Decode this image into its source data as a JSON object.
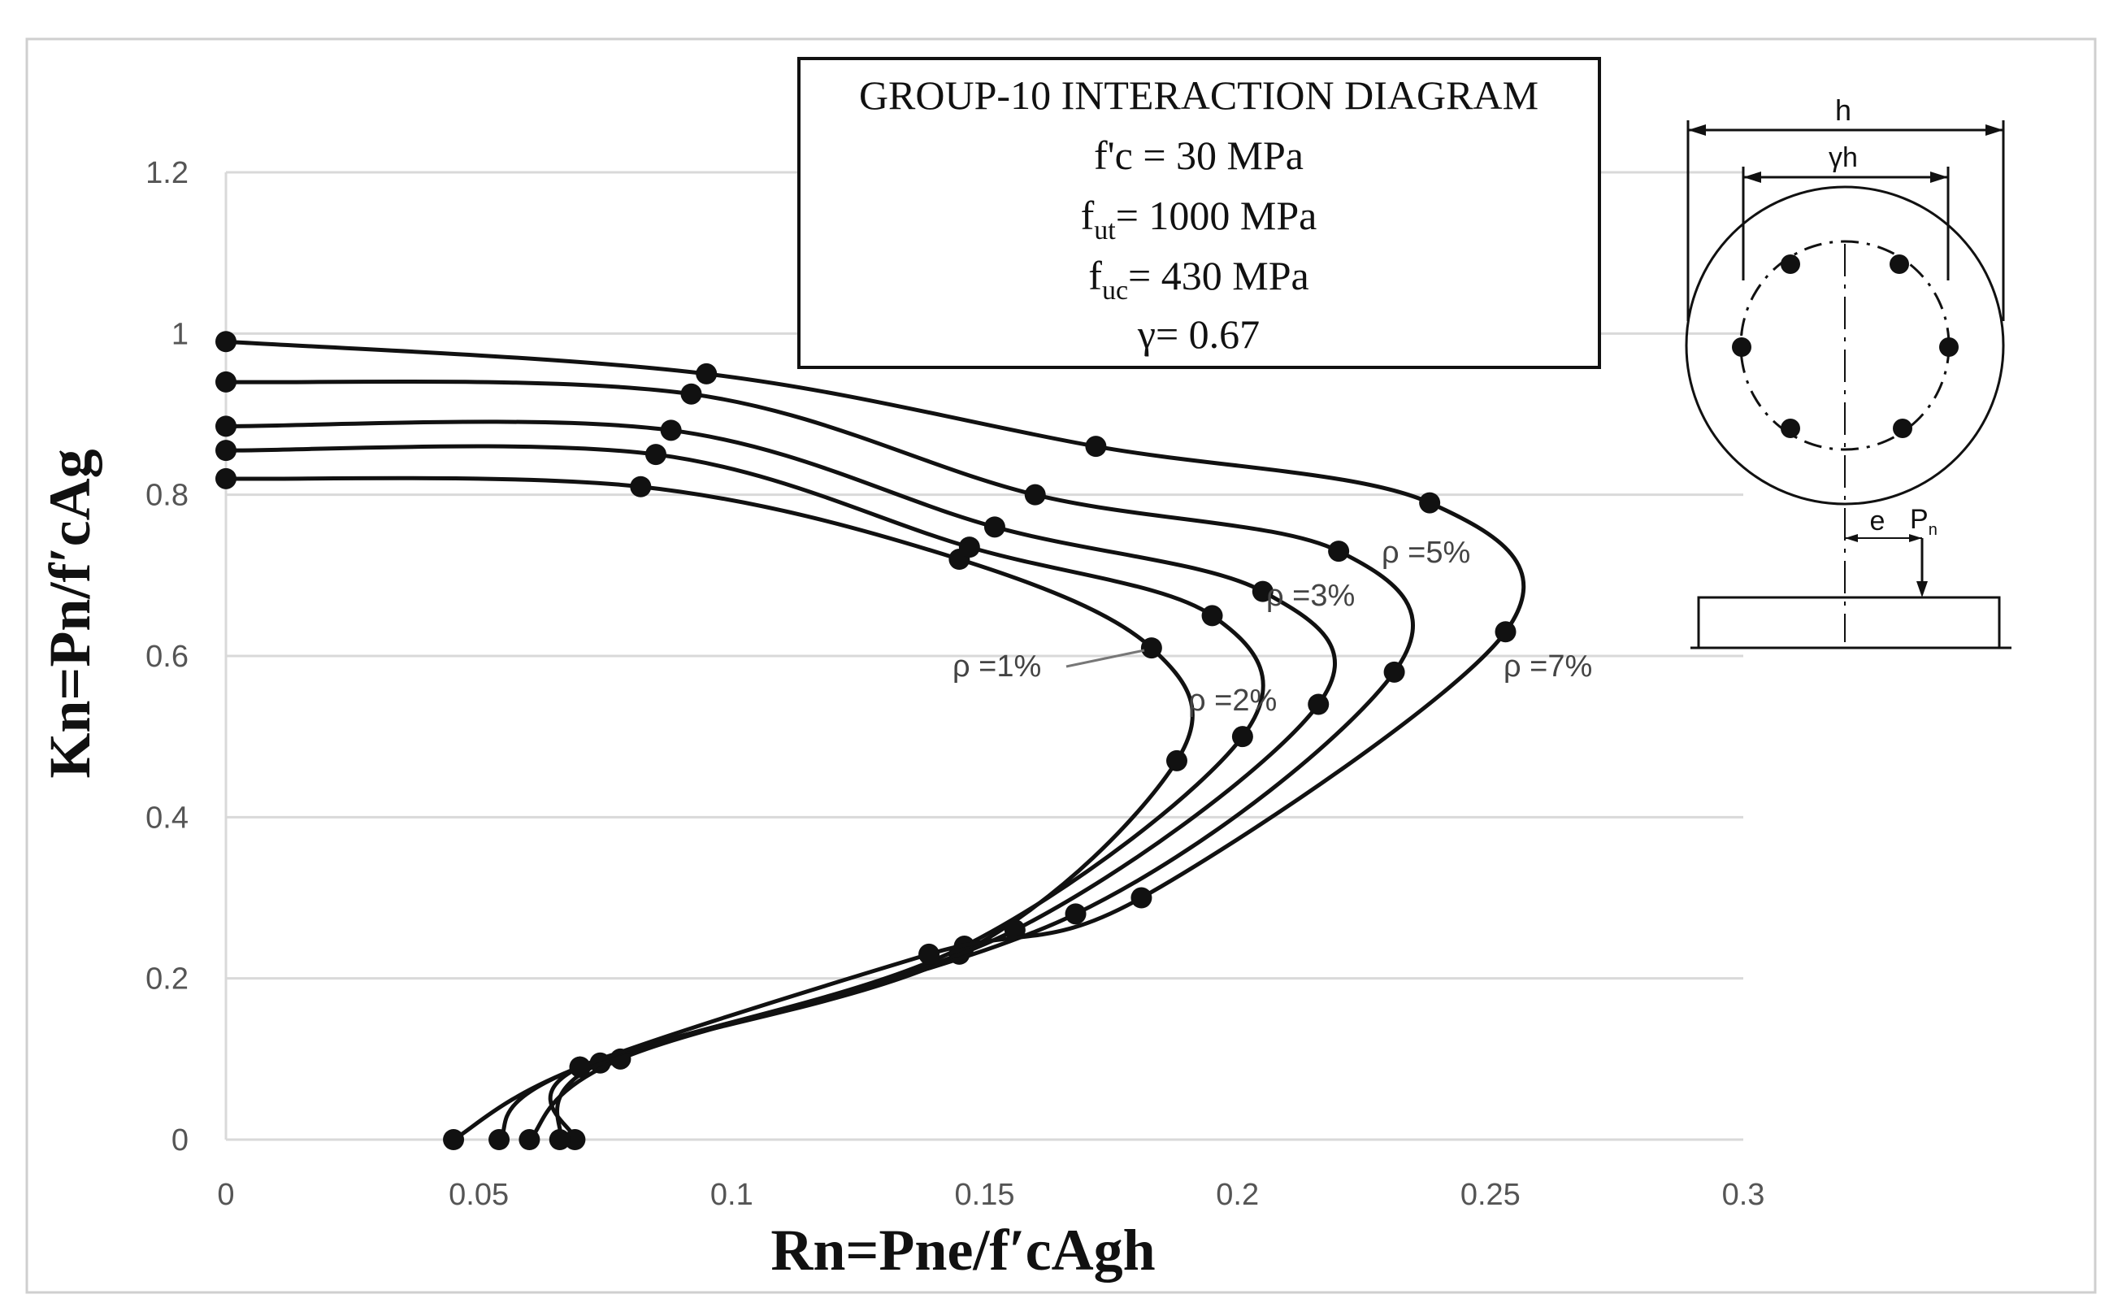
{
  "chart_data": {
    "type": "line",
    "title": "GROUP-10 INTERACTION DIAGRAM",
    "annotations": {
      "fc": "f'c = 30 MPa",
      "fut_main": "f",
      "fut_sub": "ut",
      "fut_rest": "= 1000 MPa",
      "fuc_main": "f",
      "fuc_sub": "uc",
      "fuc_rest": "= 430 MPa",
      "gamma": "γ= 0.67"
    },
    "xlabel": "Rn=Pne/f′cAgh",
    "ylabel": "Kn=Pn/f′cAg",
    "xlim": [
      0,
      0.3
    ],
    "ylim": [
      0,
      1.2
    ],
    "x_ticks": [
      "0",
      "0.05",
      "0.1",
      "0.15",
      "0.2",
      "0.25",
      "0.3"
    ],
    "y_ticks": [
      "0",
      "0.2",
      "0.4",
      "0.6",
      "0.8",
      "1",
      "1.2"
    ],
    "grid": "horizontal",
    "series": [
      {
        "name": "ρ =1%",
        "points": [
          [
            0.069,
            0
          ],
          [
            0.07,
            0.09
          ],
          [
            0.145,
            0.23
          ],
          [
            0.188,
            0.47
          ],
          [
            0.183,
            0.61
          ],
          [
            0.145,
            0.72
          ],
          [
            0.082,
            0.81
          ],
          [
            0,
            0.82
          ]
        ]
      },
      {
        "name": "ρ =2%",
        "points": [
          [
            0.066,
            0
          ],
          [
            0.074,
            0.095
          ],
          [
            0.146,
            0.24
          ],
          [
            0.201,
            0.5
          ],
          [
            0.195,
            0.65
          ],
          [
            0.147,
            0.735
          ],
          [
            0.085,
            0.85
          ],
          [
            0,
            0.855
          ]
        ]
      },
      {
        "name": "ρ =3%",
        "points": [
          [
            0.06,
            0
          ],
          [
            0.078,
            0.1
          ],
          [
            0.156,
            0.26
          ],
          [
            0.216,
            0.54
          ],
          [
            0.205,
            0.68
          ],
          [
            0.152,
            0.76
          ],
          [
            0.088,
            0.88
          ],
          [
            0,
            0.885
          ]
        ]
      },
      {
        "name": "ρ =5%",
        "points": [
          [
            0.054,
            0
          ],
          [
            0.07,
            0.09
          ],
          [
            0.168,
            0.28
          ],
          [
            0.231,
            0.58
          ],
          [
            0.22,
            0.73
          ],
          [
            0.16,
            0.8
          ],
          [
            0.092,
            0.925
          ],
          [
            0,
            0.94
          ]
        ]
      },
      {
        "name": "ρ =7%",
        "points": [
          [
            0.045,
            0
          ],
          [
            0.07,
            0.09
          ],
          [
            0.139,
            0.23
          ],
          [
            0.181,
            0.3
          ],
          [
            0.253,
            0.63
          ],
          [
            0.238,
            0.79
          ],
          [
            0.172,
            0.86
          ],
          [
            0.095,
            0.95
          ],
          [
            0,
            0.99
          ]
        ]
      }
    ]
  },
  "section": {
    "h_label": "h",
    "gh_label": "γh",
    "e_label": "e",
    "pn_main": "P",
    "pn_sub": "n"
  }
}
